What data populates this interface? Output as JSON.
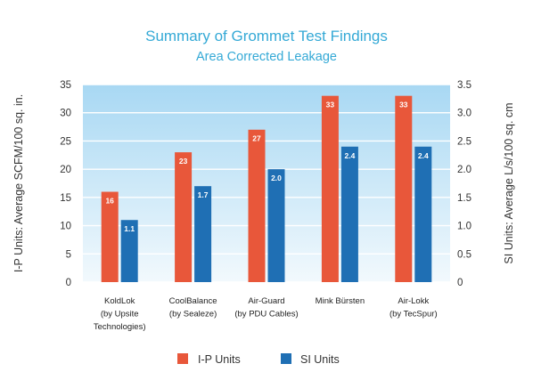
{
  "chart_data": {
    "type": "bar",
    "title": "Summary of Grommet Test Findings",
    "subtitle": "Area Corrected Leakage",
    "categories": [
      [
        "KoldLok",
        "(by Upsite",
        "Technologies)"
      ],
      [
        "CoolBalance",
        "(by Sealeze)"
      ],
      [
        "Air-Guard",
        "(by PDU Cables)"
      ],
      [
        "Mink Bürsten"
      ],
      [
        "Air-Lokk",
        "(by TecSpur)"
      ]
    ],
    "series": [
      {
        "name": "I-P Units",
        "axis": "left",
        "color": "#e8573a",
        "values": [
          16,
          23,
          27,
          33,
          33
        ],
        "labels": [
          "16",
          "23",
          "27",
          "33",
          "33"
        ]
      },
      {
        "name": "SI Units",
        "axis": "right",
        "color": "#1f6fb4",
        "values": [
          1.1,
          1.7,
          2.0,
          2.4,
          2.4
        ],
        "labels": [
          "1.1",
          "1.7",
          "2.0",
          "2.4",
          "2.4"
        ]
      }
    ],
    "ylabel": "I-P Units: Average SCFM/100 sq. in.",
    "ylabel_right": "SI Units: Average L/s/100 sq. cm",
    "ylim": [
      0,
      35
    ],
    "ylim_right": [
      0,
      3.5
    ],
    "yticks": [
      "0",
      "5",
      "10",
      "15",
      "20",
      "25",
      "30",
      "35"
    ],
    "yticks_right": [
      "0",
      "0.5",
      "1.0",
      "1.5",
      "2.0",
      "2.5",
      "3.0",
      "3.5"
    ],
    "grid": true,
    "legend_position": "bottom-center",
    "plot_background": "gradient light blue"
  }
}
